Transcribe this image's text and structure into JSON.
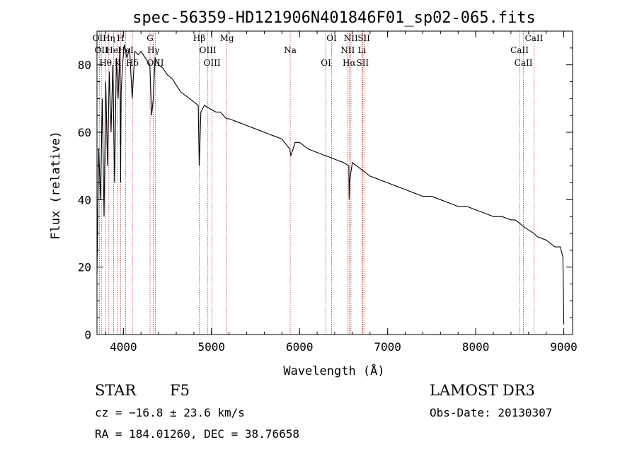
{
  "chart_data": {
    "type": "line",
    "title": "spec-56359-HD121906N401846F01_sp02-065.fits",
    "xlabel": "Wavelength (Å)",
    "ylabel": "Flux (relative)",
    "xlim": [
      3700,
      9100
    ],
    "ylim": [
      0,
      90
    ],
    "x_ticks": [
      4000,
      5000,
      6000,
      7000,
      8000,
      9000
    ],
    "y_ticks": [
      0,
      20,
      40,
      60,
      80
    ],
    "series": [
      {
        "name": "flux",
        "x": [
          3700,
          3720,
          3740,
          3760,
          3780,
          3800,
          3820,
          3840,
          3860,
          3880,
          3900,
          3920,
          3940,
          3960,
          3968,
          3975,
          3990,
          4010,
          4040,
          4070,
          4100,
          4130,
          4170,
          4200,
          4250,
          4300,
          4320,
          4340,
          4360,
          4400,
          4450,
          4500,
          4550,
          4600,
          4650,
          4700,
          4750,
          4800,
          4850,
          4861,
          4880,
          4920,
          4980,
          5050,
          5100,
          5170,
          5200,
          5300,
          5400,
          5500,
          5600,
          5700,
          5800,
          5890,
          5900,
          5950,
          6000,
          6100,
          6200,
          6300,
          6400,
          6500,
          6560,
          6563,
          6570,
          6600,
          6700,
          6800,
          6900,
          7000,
          7100,
          7200,
          7300,
          7400,
          7500,
          7600,
          7700,
          7800,
          7900,
          8000,
          8100,
          8200,
          8300,
          8400,
          8450,
          8500,
          8542,
          8600,
          8662,
          8700,
          8800,
          8900,
          8960,
          8990,
          9000
        ],
        "y": [
          18,
          55,
          40,
          70,
          35,
          75,
          50,
          78,
          60,
          80,
          45,
          82,
          70,
          85,
          45,
          72,
          80,
          86,
          82,
          85,
          70,
          84,
          83,
          84,
          82,
          80,
          65,
          70,
          82,
          80,
          79,
          77,
          76,
          74,
          72,
          71,
          70,
          69,
          68,
          50,
          66,
          68,
          67,
          66,
          66,
          64,
          64,
          63,
          62,
          61,
          60,
          59,
          58,
          55,
          53,
          57,
          57,
          55,
          54,
          53,
          52,
          51,
          50,
          40,
          46,
          51,
          49,
          47,
          46,
          45,
          44,
          43,
          42,
          41,
          41,
          40,
          39,
          38,
          38,
          37,
          36,
          35,
          35,
          34,
          34,
          33,
          32,
          31,
          30,
          29,
          28,
          26,
          26,
          23,
          3
        ]
      }
    ],
    "line_markers": [
      {
        "wl": 3727,
        "label": "OII"
      },
      {
        "wl": 3750,
        "label": "OII"
      },
      {
        "wl": 3798,
        "label": "Hθ"
      },
      {
        "wl": 3835,
        "label": "Hη"
      },
      {
        "wl": 3889,
        "label": "HeI"
      },
      {
        "wl": 3934,
        "label": "K"
      },
      {
        "wl": 3968,
        "label": "H"
      },
      {
        "wl": 4026,
        "label": "HeI"
      },
      {
        "wl": 4102,
        "label": "Hδ"
      },
      {
        "wl": 4303,
        "label": "G"
      },
      {
        "wl": 4341,
        "label": "Hγ"
      },
      {
        "wl": 4363,
        "label": "OIII"
      },
      {
        "wl": 4861,
        "label": "Hβ"
      },
      {
        "wl": 4959,
        "label": "OIII"
      },
      {
        "wl": 5007,
        "label": "OIII"
      },
      {
        "wl": 5175,
        "label": "Mg"
      },
      {
        "wl": 5894,
        "label": "Na"
      },
      {
        "wl": 6300,
        "label": "OI"
      },
      {
        "wl": 6364,
        "label": "OI"
      },
      {
        "wl": 6548,
        "label": "NII"
      },
      {
        "wl": 6563,
        "label": "Hα"
      },
      {
        "wl": 6583,
        "label": "NII"
      },
      {
        "wl": 6708,
        "label": "Li"
      },
      {
        "wl": 6716,
        "label": "SII"
      },
      {
        "wl": 6731,
        "label": "SII"
      },
      {
        "wl": 8498,
        "label": "CaII"
      },
      {
        "wl": 8542,
        "label": "CaII"
      },
      {
        "wl": 8662,
        "label": "CaII"
      }
    ],
    "grid": false
  },
  "info": {
    "object_class": "STAR",
    "subclass": "F5",
    "survey": "LAMOST DR3",
    "redshift_line": "cz = −16.8 ± 23.6 km/s",
    "obs_date": "Obs-Date: 20130307",
    "coords": "RA = 184.01260, DEC =  38.76658"
  },
  "colors": {
    "marker_line": "#c83232",
    "spectrum": "#000000"
  }
}
